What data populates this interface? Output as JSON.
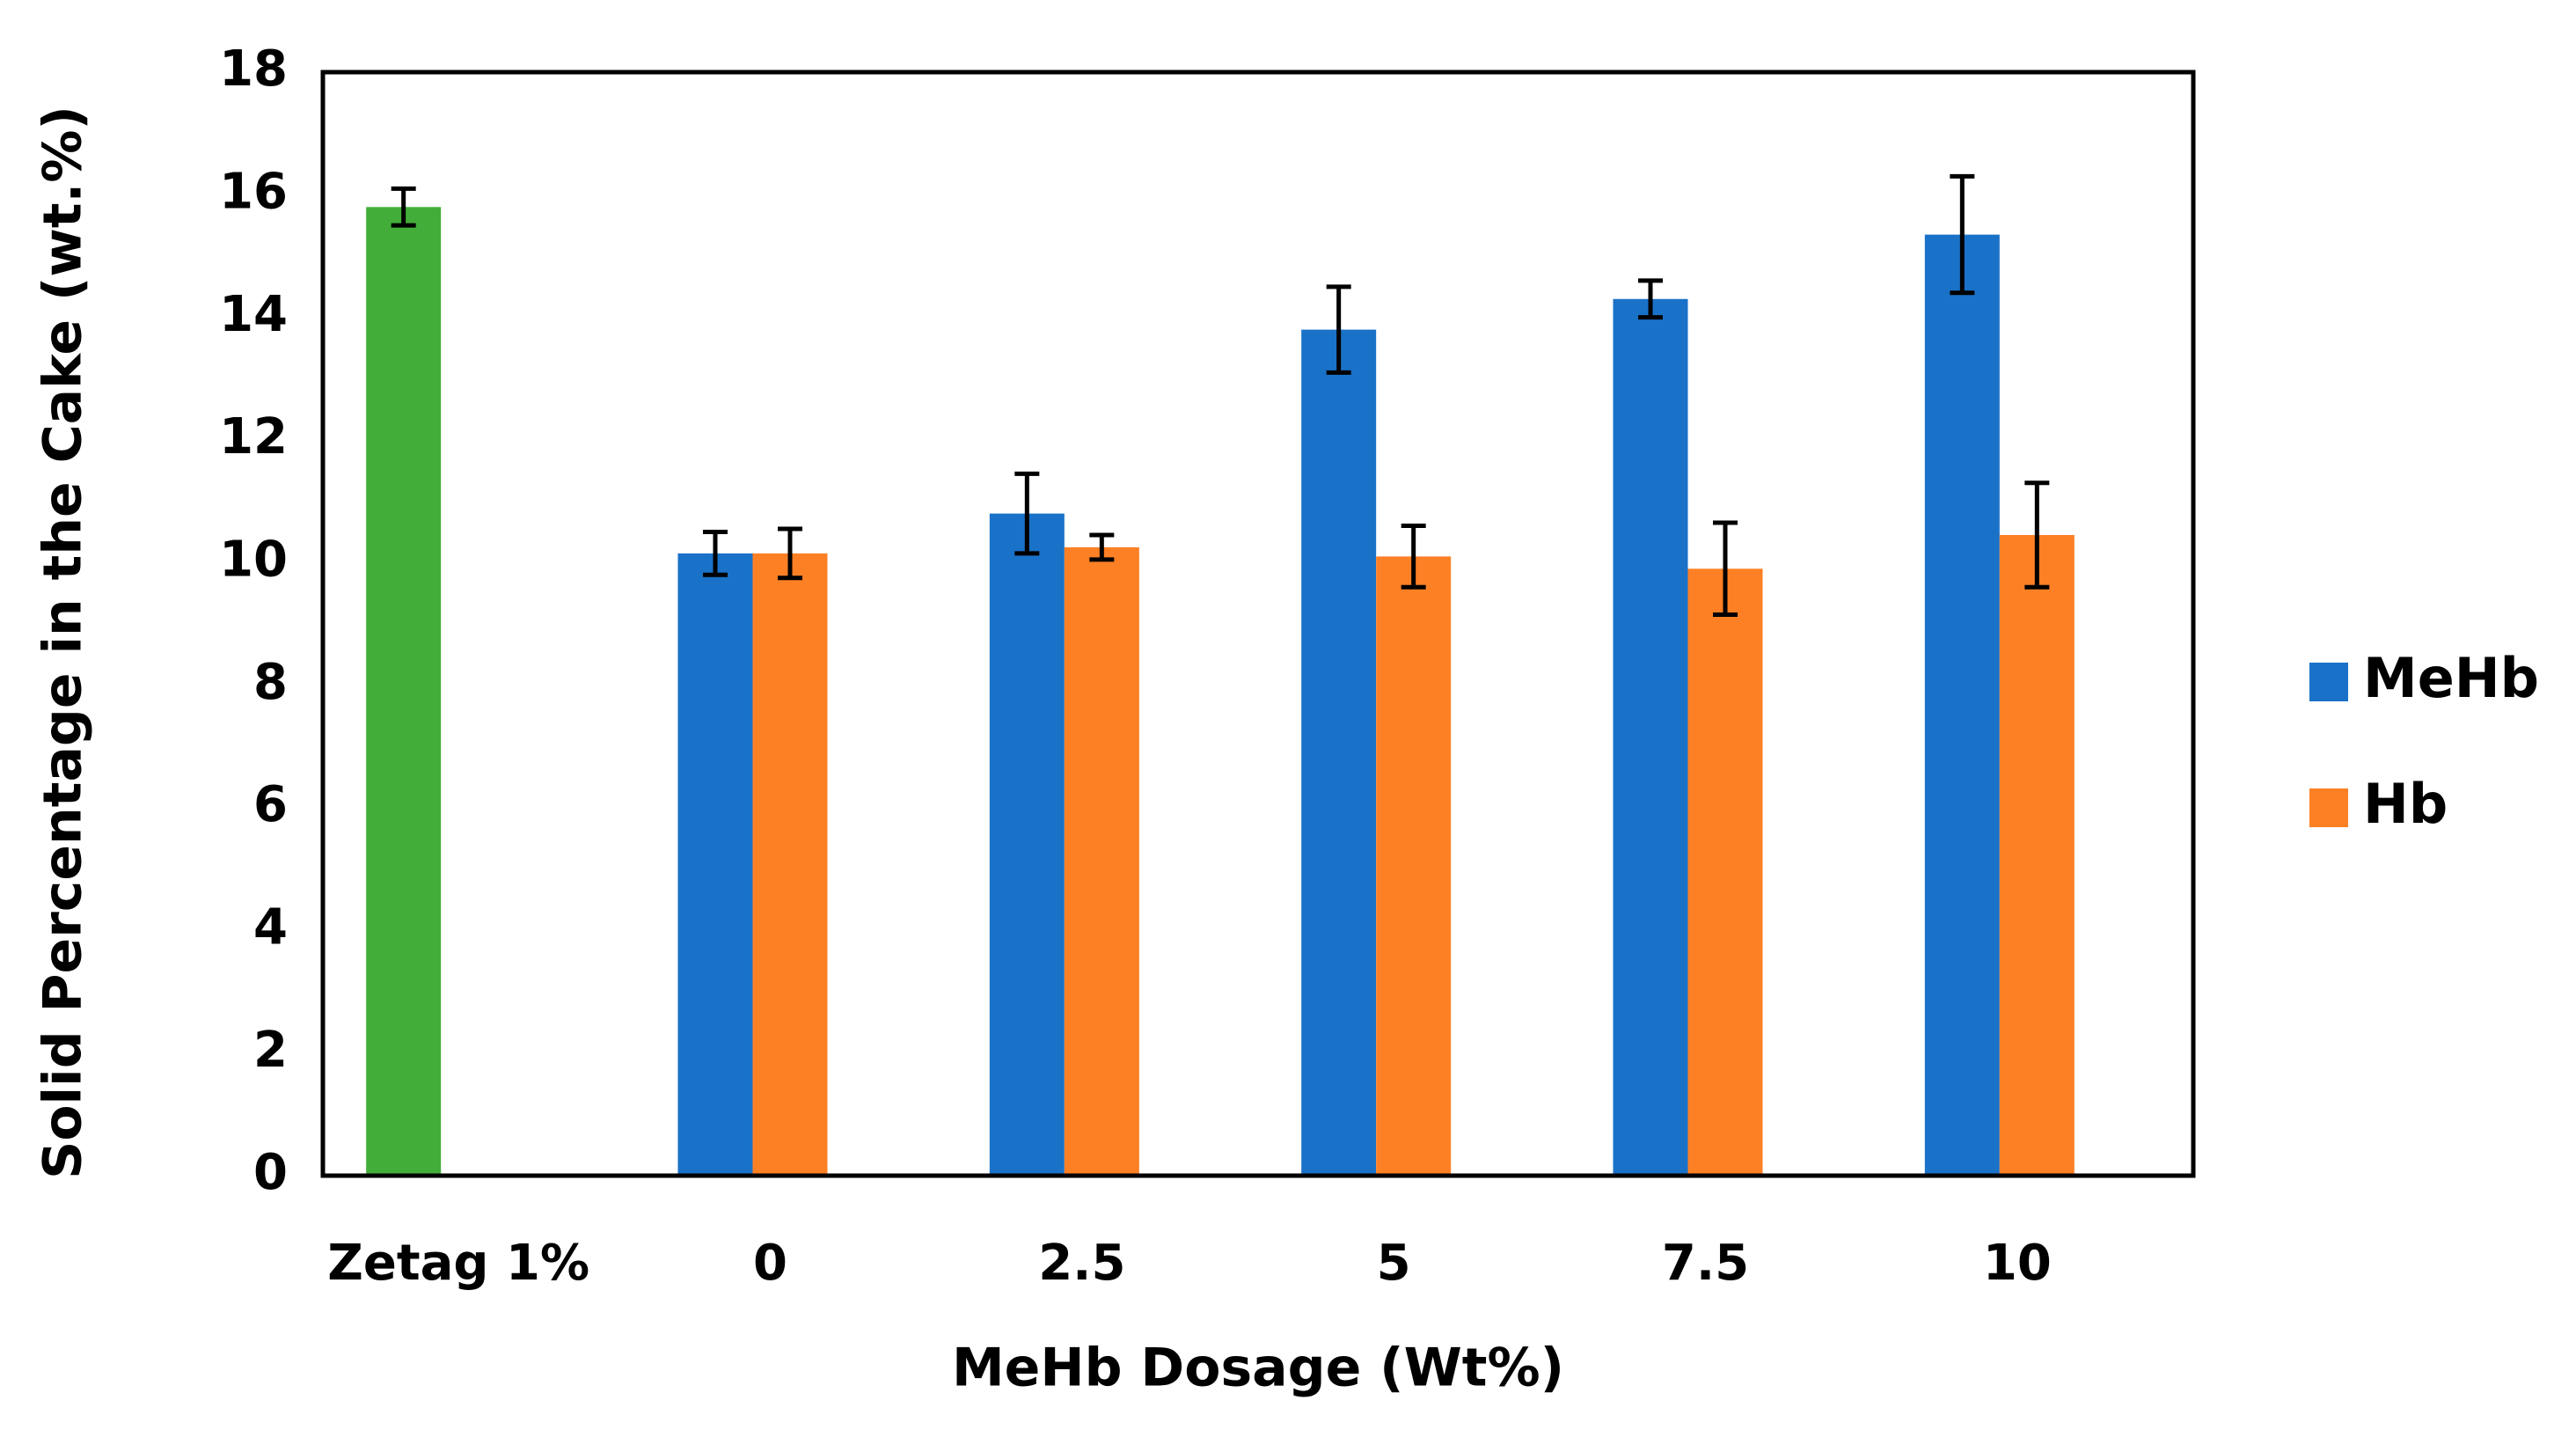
{
  "chart_data": {
    "type": "bar",
    "x_label": "MeHb Dosage (Wt%)",
    "y_label": "Solid Percentage in the Cake (wt.%)",
    "categories": [
      "Zetag 1%",
      "0",
      "2.5",
      "5",
      "7.5",
      "10"
    ],
    "series": [
      {
        "color": "#43ad3a",
        "values": [
          15.8,
          null,
          null,
          null,
          null,
          null
        ],
        "errors": [
          0.3,
          null,
          null,
          null,
          null,
          null
        ]
      },
      {
        "name": "MeHb",
        "color": "#1a72c8",
        "values": [
          null,
          10.15,
          10.8,
          13.8,
          14.3,
          15.35
        ],
        "errors": [
          null,
          0.35,
          0.65,
          0.7,
          0.3,
          0.95
        ]
      },
      {
        "name": "Hb",
        "color": "#fe8025",
        "values": [
          null,
          10.15,
          10.25,
          10.1,
          9.9,
          10.45
        ],
        "errors": [
          null,
          0.4,
          0.2,
          0.5,
          0.75,
          0.85
        ]
      }
    ],
    "ylim": [
      0,
      18
    ],
    "yticks": [
      0,
      2,
      4,
      6,
      8,
      10,
      12,
      14,
      16,
      18
    ],
    "grid": false,
    "legend": "right"
  }
}
